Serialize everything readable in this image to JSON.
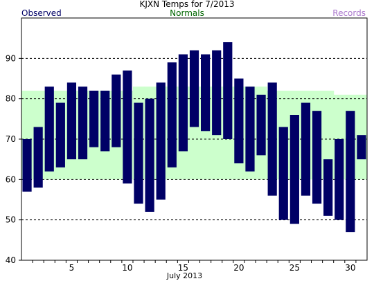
{
  "chart_data": {
    "type": "bar",
    "title": "KJXN Temps for 7/2013",
    "xlabel": "July 2013",
    "ylabel": "",
    "legend": [
      {
        "name": "Observed",
        "color": "#000066"
      },
      {
        "name": "Normals",
        "color": "#006600"
      },
      {
        "name": "Records",
        "color": "#aa77cc"
      }
    ],
    "xlim": [
      1,
      31
    ],
    "ylim": [
      40,
      100
    ],
    "x_ticks": [
      5,
      10,
      15,
      20,
      25,
      30
    ],
    "y_ticks": [
      40,
      50,
      60,
      70,
      80,
      90
    ],
    "grid_lines": [
      50,
      60,
      70,
      80,
      90
    ],
    "days": [
      1,
      2,
      3,
      4,
      5,
      6,
      7,
      8,
      9,
      10,
      11,
      12,
      13,
      14,
      15,
      16,
      17,
      18,
      19,
      20,
      21,
      22,
      23,
      24,
      25,
      26,
      27,
      28,
      29,
      30,
      31
    ],
    "series": [
      {
        "name": "Observed",
        "kind": "range_bars",
        "low": [
          57,
          58,
          62,
          63,
          65,
          65,
          68,
          67,
          68,
          59,
          54,
          52,
          55,
          63,
          67,
          73,
          72,
          71,
          70,
          64,
          62,
          66,
          56,
          50,
          49,
          56,
          54,
          51,
          50,
          47,
          65
        ],
        "high": [
          70,
          73,
          83,
          79,
          84,
          83,
          82,
          82,
          86,
          87,
          79,
          80,
          84,
          89,
          91,
          92,
          91,
          92,
          94,
          85,
          83,
          81,
          84,
          73,
          76,
          79,
          77,
          65,
          70,
          77,
          71
        ]
      },
      {
        "name": "Normals",
        "kind": "band",
        "low": [
          60,
          60,
          60,
          60,
          60,
          60,
          60,
          60,
          60,
          60,
          60,
          60,
          60,
          60,
          60,
          60,
          60,
          60,
          60,
          60,
          60,
          60,
          60,
          60,
          60,
          60,
          60,
          60,
          60,
          60,
          60
        ],
        "high": [
          82,
          82,
          82,
          82,
          82,
          82,
          82,
          82,
          82,
          82,
          83,
          83,
          83,
          83,
          83,
          83,
          83,
          83,
          83,
          83,
          83,
          83,
          82,
          82,
          82,
          82,
          82,
          82,
          81,
          81,
          81
        ]
      }
    ],
    "colors": {
      "observed_bar": "#000066",
      "normals_band": "#ccffcc",
      "normals_text": "#006600",
      "records_text": "#aa77cc",
      "observed_text": "#000066",
      "grid": "#000000"
    }
  }
}
